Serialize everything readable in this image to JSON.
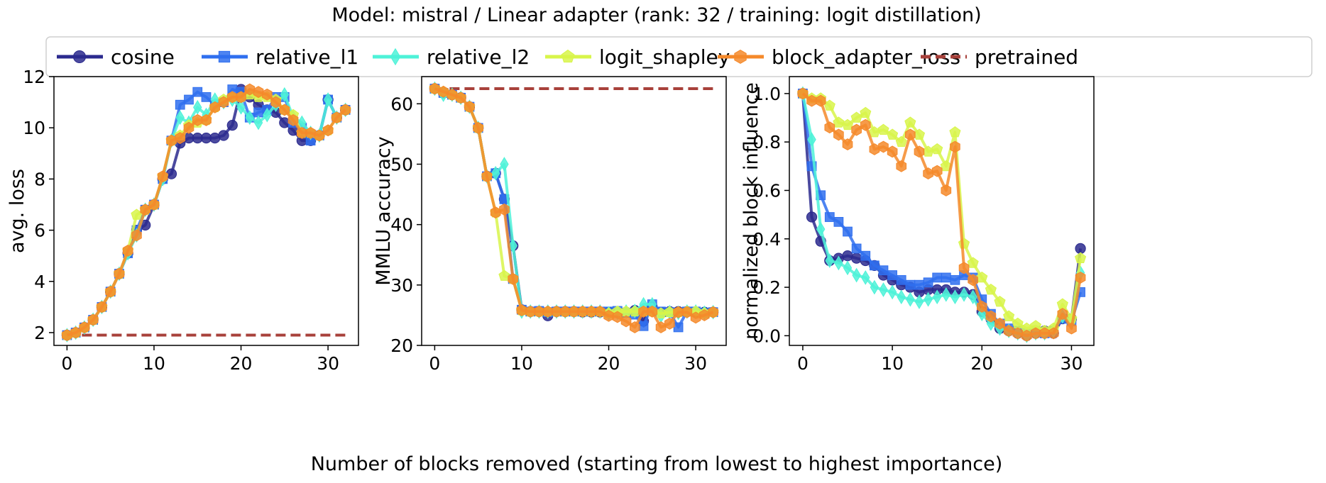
{
  "suptitle": "Model: mistral / Linear adapter (rank: 32 / training: logit distillation)",
  "shared_xlabel": "Number of blocks removed (starting from lowest to highest importance)",
  "series_styles": [
    {
      "name": "cosine",
      "color": "#2b2a8e",
      "marker": "circle"
    },
    {
      "name": "relative_l1",
      "color": "#2f6fef",
      "marker": "square"
    },
    {
      "name": "relative_l2",
      "color": "#4ef2d8",
      "marker": "diamond"
    },
    {
      "name": "logit_shapley",
      "color": "#d8f54a",
      "marker": "pentagon"
    },
    {
      "name": "block_adapter_loss",
      "color": "#f5892a",
      "marker": "hexagon"
    },
    {
      "name": "pretrained",
      "color": "#a8413b",
      "marker": "dashed-line"
    }
  ],
  "chart_data": [
    {
      "type": "line",
      "title": "",
      "xlabel": "",
      "ylabel": "avg. loss",
      "xlim": [
        -1.5,
        33.5
      ],
      "ylim": [
        1.5,
        12
      ],
      "xticks": [
        "0",
        "10",
        "20",
        "30"
      ],
      "xtick_values": [
        0,
        10,
        20,
        30
      ],
      "yticks": [
        "2",
        "4",
        "6",
        "8",
        "10",
        "12"
      ],
      "ytick_values": [
        2,
        4,
        6,
        8,
        10,
        12
      ],
      "x": [
        0,
        1,
        2,
        3,
        4,
        5,
        6,
        7,
        8,
        9,
        10,
        11,
        12,
        13,
        14,
        15,
        16,
        17,
        18,
        19,
        20,
        21,
        22,
        23,
        24,
        25,
        26,
        27,
        28,
        29,
        30,
        31,
        32
      ],
      "series": [
        {
          "name": "cosine",
          "values": [
            1.9,
            2.0,
            2.2,
            2.5,
            3.0,
            3.6,
            4.3,
            5.1,
            6.0,
            6.2,
            7.0,
            8.0,
            8.2,
            9.4,
            9.6,
            9.6,
            9.6,
            9.6,
            9.7,
            10.1,
            11.5,
            11.2,
            10.9,
            10.7,
            10.6,
            10.2,
            9.9,
            9.5,
            9.5,
            9.7,
            11.1,
            10.4,
            10.7
          ]
        },
        {
          "name": "relative_l1",
          "values": [
            1.9,
            2.0,
            2.2,
            2.5,
            3.0,
            3.6,
            4.3,
            5.1,
            6.0,
            6.8,
            7.0,
            8.0,
            9.5,
            10.9,
            11.1,
            11.4,
            11.2,
            10.9,
            11.0,
            11.5,
            11.4,
            10.4,
            10.6,
            10.7,
            11.2,
            11.2,
            10.2,
            10.0,
            9.5,
            9.7,
            11.1,
            10.4,
            10.7
          ]
        },
        {
          "name": "relative_l2",
          "values": [
            1.9,
            2.0,
            2.2,
            2.5,
            3.0,
            3.6,
            4.3,
            5.1,
            5.8,
            6.8,
            7.0,
            8.0,
            9.5,
            10.4,
            10.2,
            10.8,
            10.5,
            11.1,
            11.0,
            11.1,
            10.8,
            10.4,
            10.2,
            10.5,
            10.9,
            11.3,
            10.4,
            10.2,
            9.8,
            9.7,
            11.1,
            10.4,
            10.7
          ]
        },
        {
          "name": "logit_shapley",
          "values": [
            1.9,
            2.0,
            2.2,
            2.5,
            3.0,
            3.6,
            4.3,
            5.2,
            6.6,
            6.8,
            7.0,
            8.1,
            9.5,
            9.7,
            10.1,
            10.2,
            10.3,
            10.8,
            11.1,
            11.2,
            11.2,
            11.3,
            11.2,
            11.2,
            11.1,
            10.7,
            10.5,
            9.8,
            9.8,
            9.7,
            9.9,
            10.4,
            10.7
          ]
        },
        {
          "name": "block_adapter_loss",
          "values": [
            1.9,
            2.0,
            2.2,
            2.5,
            3.0,
            3.6,
            4.3,
            5.2,
            5.8,
            6.8,
            7.0,
            8.1,
            9.5,
            9.6,
            10.0,
            10.3,
            10.3,
            10.8,
            11.0,
            11.2,
            11.2,
            11.5,
            11.4,
            11.3,
            11.0,
            10.7,
            10.3,
            9.8,
            9.8,
            9.7,
            9.9,
            10.4,
            10.7
          ]
        }
      ],
      "reference_line": {
        "name": "pretrained",
        "y": 1.9,
        "x": [
          0,
          32
        ]
      }
    },
    {
      "type": "line",
      "title": "",
      "xlabel": "",
      "ylabel": "MMLU accuracy",
      "xlim": [
        -1.5,
        33.5
      ],
      "ylim": [
        20,
        64.5
      ],
      "xticks": [
        "0",
        "10",
        "20",
        "30"
      ],
      "xtick_values": [
        0,
        10,
        20,
        30
      ],
      "yticks": [
        "20",
        "30",
        "40",
        "50",
        "60"
      ],
      "ytick_values": [
        20,
        30,
        40,
        50,
        60
      ],
      "x": [
        0,
        1,
        2,
        3,
        4,
        5,
        6,
        7,
        8,
        9,
        10,
        11,
        12,
        13,
        14,
        15,
        16,
        17,
        18,
        19,
        20,
        21,
        22,
        23,
        24,
        25,
        26,
        27,
        28,
        29,
        30,
        31,
        32
      ],
      "series": [
        {
          "name": "cosine",
          "values": [
            62.5,
            61.8,
            61.5,
            61.0,
            59.5,
            56.0,
            48.0,
            48.5,
            44.2,
            36.5,
            25.9,
            25.6,
            25.6,
            24.9,
            25.6,
            25.6,
            25.6,
            25.5,
            25.5,
            25.5,
            25.5,
            25.5,
            25.5,
            25.8,
            24.0,
            26.4,
            25.5,
            25.6,
            25.6,
            25.6,
            25.5,
            25.5,
            25.5
          ]
        },
        {
          "name": "relative_l1",
          "values": [
            62.5,
            61.8,
            61.5,
            61.0,
            59.5,
            56.0,
            48.0,
            48.5,
            44.2,
            31.0,
            25.9,
            25.6,
            25.7,
            25.5,
            25.6,
            25.6,
            25.6,
            25.6,
            25.6,
            25.6,
            25.6,
            25.7,
            25.4,
            25.1,
            23.2,
            26.8,
            25.6,
            25.5,
            23.0,
            25.6,
            25.6,
            25.4,
            25.5
          ]
        },
        {
          "name": "relative_l2",
          "values": [
            62.5,
            61.5,
            61.5,
            61.0,
            59.5,
            56.0,
            48.0,
            48.5,
            50.0,
            36.5,
            25.6,
            25.6,
            25.6,
            25.6,
            25.6,
            25.6,
            25.6,
            25.6,
            25.6,
            25.6,
            25.3,
            25.4,
            25.6,
            25.7,
            26.8,
            26.8,
            24.9,
            25.5,
            25.4,
            25.6,
            25.6,
            25.4,
            25.5
          ]
        },
        {
          "name": "logit_shapley",
          "values": [
            62.5,
            62.0,
            61.5,
            61.0,
            59.5,
            56.0,
            48.0,
            42.0,
            31.5,
            31.0,
            25.8,
            25.6,
            25.6,
            25.6,
            25.6,
            25.6,
            25.6,
            25.6,
            25.6,
            25.6,
            25.3,
            25.6,
            25.6,
            25.6,
            25.6,
            25.6,
            25.3,
            25.5,
            25.5,
            25.6,
            25.6,
            25.3,
            25.5
          ]
        },
        {
          "name": "block_adapter_loss",
          "values": [
            62.5,
            62.0,
            61.5,
            61.0,
            59.5,
            56.0,
            48.0,
            42.0,
            42.5,
            31.0,
            25.8,
            25.6,
            25.6,
            25.6,
            25.6,
            25.6,
            25.6,
            25.6,
            25.6,
            25.6,
            24.9,
            24.7,
            24.0,
            23.0,
            25.6,
            25.6,
            23.0,
            23.6,
            25.5,
            25.5,
            24.6,
            25.0,
            25.5
          ]
        }
      ],
      "reference_line": {
        "name": "pretrained",
        "y": 62.5,
        "x": [
          0,
          32
        ]
      }
    },
    {
      "type": "line",
      "title": "",
      "xlabel": "",
      "ylabel": "normalized block influence",
      "xlim": [
        -1.5,
        32.5
      ],
      "ylim": [
        -0.04,
        1.07
      ],
      "xticks": [
        "0",
        "10",
        "20",
        "30"
      ],
      "xtick_values": [
        0,
        10,
        20,
        30
      ],
      "yticks": [
        "0.0",
        "0.2",
        "0.4",
        "0.6",
        "0.8",
        "1.0"
      ],
      "ytick_values": [
        0.0,
        0.2,
        0.4,
        0.6,
        0.8,
        1.0
      ],
      "x": [
        0,
        1,
        2,
        3,
        4,
        5,
        6,
        7,
        8,
        9,
        10,
        11,
        12,
        13,
        14,
        15,
        16,
        17,
        18,
        19,
        20,
        21,
        22,
        23,
        24,
        25,
        26,
        27,
        28,
        29,
        30,
        31
      ],
      "series": [
        {
          "name": "cosine",
          "values": [
            1.0,
            0.49,
            0.39,
            0.31,
            0.32,
            0.33,
            0.32,
            0.31,
            0.29,
            0.25,
            0.23,
            0.21,
            0.2,
            0.18,
            0.19,
            0.19,
            0.19,
            0.18,
            0.18,
            0.17,
            0.1,
            0.07,
            0.03,
            0.02,
            0.01,
            0.0,
            0.01,
            0.02,
            0.01,
            0.07,
            0.07,
            0.36
          ]
        },
        {
          "name": "relative_l1",
          "values": [
            1.0,
            0.7,
            0.58,
            0.49,
            0.47,
            0.43,
            0.36,
            0.33,
            0.29,
            0.27,
            0.25,
            0.23,
            0.21,
            0.21,
            0.22,
            0.24,
            0.24,
            0.23,
            0.25,
            0.24,
            0.15,
            0.09,
            0.05,
            0.03,
            0.02,
            0.01,
            0.02,
            0.01,
            0.02,
            0.07,
            0.06,
            0.18
          ]
        },
        {
          "name": "relative_l2",
          "values": [
            1.0,
            0.81,
            0.44,
            0.31,
            0.3,
            0.28,
            0.25,
            0.24,
            0.2,
            0.19,
            0.18,
            0.16,
            0.15,
            0.14,
            0.15,
            0.16,
            0.17,
            0.16,
            0.17,
            0.16,
            0.09,
            0.05,
            0.03,
            0.02,
            0.01,
            0.0,
            0.01,
            0.01,
            0.02,
            0.08,
            0.06,
            0.26
          ]
        },
        {
          "name": "logit_shapley",
          "values": [
            1.0,
            0.98,
            0.98,
            0.95,
            0.88,
            0.87,
            0.9,
            0.92,
            0.84,
            0.85,
            0.83,
            0.8,
            0.88,
            0.83,
            0.76,
            0.77,
            0.7,
            0.84,
            0.38,
            0.3,
            0.24,
            0.19,
            0.14,
            0.08,
            0.05,
            0.03,
            0.04,
            0.02,
            0.03,
            0.13,
            0.07,
            0.32
          ]
        },
        {
          "name": "block_adapter_loss",
          "values": [
            1.0,
            0.97,
            0.97,
            0.86,
            0.83,
            0.79,
            0.85,
            0.87,
            0.77,
            0.78,
            0.76,
            0.7,
            0.83,
            0.76,
            0.67,
            0.68,
            0.6,
            0.78,
            0.28,
            0.23,
            0.12,
            0.08,
            0.05,
            0.02,
            0.01,
            0.0,
            0.01,
            0.01,
            0.01,
            0.09,
            0.03,
            0.24
          ]
        }
      ]
    }
  ]
}
